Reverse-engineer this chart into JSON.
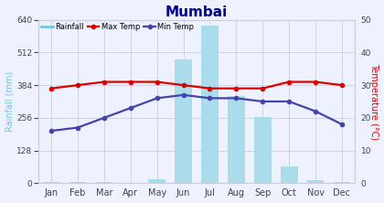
{
  "title": "Mumbai",
  "months": [
    "Jan",
    "Feb",
    "Mar",
    "Apr",
    "May",
    "Jun",
    "Jul",
    "Aug",
    "Sep",
    "Oct",
    "Nov",
    "Dec"
  ],
  "rainfall": [
    3,
    3,
    3,
    1,
    16,
    485,
    617,
    340,
    260,
    65,
    13,
    5
  ],
  "max_temp": [
    29,
    30,
    31,
    31,
    31,
    30,
    29,
    29,
    29,
    31,
    31,
    30
  ],
  "min_temp": [
    16,
    17,
    20,
    23,
    26,
    27,
    26,
    26,
    25,
    25,
    22,
    18
  ],
  "bar_color": "#aadcec",
  "max_temp_color": "#dd0000",
  "min_temp_color": "#4444aa",
  "rainfall_label": "Rainfall",
  "max_temp_label": "Max Temp",
  "min_temp_label": "Min Temp",
  "left_ylim": [
    0,
    640
  ],
  "right_ylim": [
    0,
    50
  ],
  "left_yticks": [
    0,
    128,
    256,
    384,
    512,
    640
  ],
  "right_yticks": [
    0,
    10,
    20,
    30,
    40,
    50
  ],
  "ylabel_left": "Rainfall (mm)",
  "ylabel_right": "Temperature (°C)",
  "title_color": "#00008B",
  "axis_label_color_left": "#6dc8e0",
  "axis_label_color_right": "#dd0000",
  "legend_rainfall_color": "#6dc8e0",
  "background_color": "#eef2ff",
  "grid_color": "#ccccdd",
  "tick_label_color": "#444444"
}
